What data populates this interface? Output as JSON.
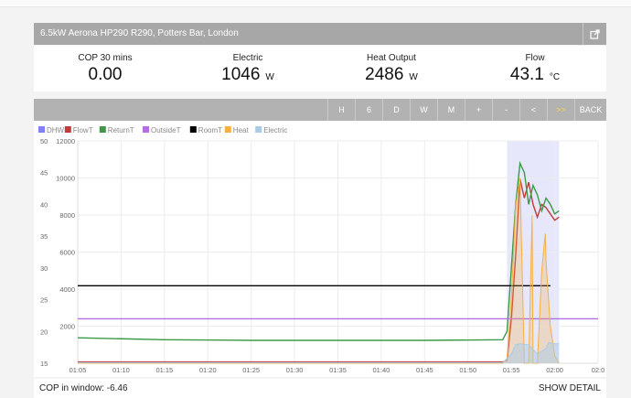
{
  "header": {
    "title": "6.5kW Aerona HP290 R290, Potters Bar, London"
  },
  "stats": [
    {
      "label": "COP 30 mins",
      "value": "0.00",
      "unit": ""
    },
    {
      "label": "Electric",
      "value": "1046",
      "unit": "W"
    },
    {
      "label": "Heat Output",
      "value": "2486",
      "unit": "W"
    },
    {
      "label": "Flow",
      "value": "43.1",
      "unit": "°C"
    }
  ],
  "toolbar": {
    "buttons": [
      "H",
      "6",
      "D",
      "W",
      "M",
      "+",
      "-",
      "<",
      ">>",
      "BACK"
    ],
    "highlight_color": "#ffd84d"
  },
  "footer": {
    "cop_text": "COP in window: -6.46",
    "show_detail": "SHOW DETAIL"
  },
  "chart_data": {
    "type": "line",
    "legend": [
      {
        "name": "DHW",
        "color": "#8080ff"
      },
      {
        "name": "FlowT",
        "color": "#c23b3b"
      },
      {
        "name": "ReturnT",
        "color": "#3a9a48"
      },
      {
        "name": "OutsideT",
        "color": "#b36ee0"
      },
      {
        "name": "RoomT",
        "color": "#000000"
      },
      {
        "name": "Heat",
        "color": "#f5b041"
      },
      {
        "name": "Electric",
        "color": "#a9cbe8"
      }
    ],
    "x_ticks": [
      "01:05",
      "01:10",
      "01:15",
      "01:20",
      "01:25",
      "01:30",
      "01:35",
      "01:40",
      "01:45",
      "01:50",
      "01:55",
      "02:00",
      "02:0"
    ],
    "x_range_minutes": [
      0,
      60
    ],
    "y_left_ticks": [
      "15",
      "20",
      "25",
      "30",
      "35",
      "40",
      "45",
      "50"
    ],
    "y_left_range": [
      15,
      50
    ],
    "y_right_ticks": [
      "2000",
      "4000",
      "6000",
      "8000",
      "10000",
      "12000"
    ],
    "y_right_range": [
      0,
      12000
    ],
    "dhw_window_minutes": [
      49.5,
      55.5
    ],
    "series": [
      {
        "name": "FlowT",
        "axis": "left",
        "color": "#c23b3b",
        "x": [
          0,
          49,
          49.5,
          50,
          50.5,
          51,
          51.5,
          52,
          52.5,
          53,
          53.5,
          54,
          54.5,
          55,
          55.5
        ],
        "y": [
          15.2,
          15.2,
          15.4,
          22,
          32,
          44,
          41,
          43.5,
          40,
          38,
          40,
          39.5,
          38.5,
          37.5,
          38
        ]
      },
      {
        "name": "ReturnT",
        "axis": "left",
        "color": "#3a9a48",
        "x": [
          0,
          10,
          20,
          30,
          40,
          49,
          49.5,
          50,
          50.5,
          51,
          51.5,
          52,
          52.5,
          53,
          53.5,
          54,
          54.5,
          55,
          55.5
        ],
        "y": [
          19,
          18.7,
          18.6,
          18.6,
          18.6,
          18.7,
          20,
          30,
          40,
          46.5,
          45,
          40,
          43,
          41.5,
          39,
          41,
          40,
          38.5,
          39
        ]
      },
      {
        "name": "RoomT",
        "axis": "left",
        "color": "#000000",
        "x": [
          0,
          54.5
        ],
        "y": [
          27.2,
          27.2
        ]
      },
      {
        "name": "OutsideT",
        "axis": "left",
        "color": "#b36ee0",
        "x": [
          0,
          60
        ],
        "y": [
          22,
          22
        ]
      },
      {
        "name": "Heat",
        "axis": "right",
        "color": "#f5b041",
        "x": [
          0,
          49,
          49.5,
          50,
          50.5,
          51,
          51.5,
          51.6,
          52,
          52.4,
          52.5,
          53,
          53.5,
          53.9,
          54,
          54.5,
          55,
          55.5
        ],
        "y": [
          0,
          0,
          200,
          3500,
          8500,
          10000,
          0,
          0,
          0,
          8000,
          0,
          0,
          5000,
          7000,
          5500,
          2000,
          400,
          0
        ]
      },
      {
        "name": "Electric",
        "axis": "right",
        "color": "#a9cbe8",
        "x": [
          0,
          30,
          49,
          50,
          50.5,
          51,
          52,
          53,
          54,
          54.3,
          55,
          55.5
        ],
        "y": [
          30,
          30,
          30,
          500,
          1000,
          1050,
          1000,
          500,
          800,
          1100,
          1050,
          1050
        ]
      }
    ]
  }
}
